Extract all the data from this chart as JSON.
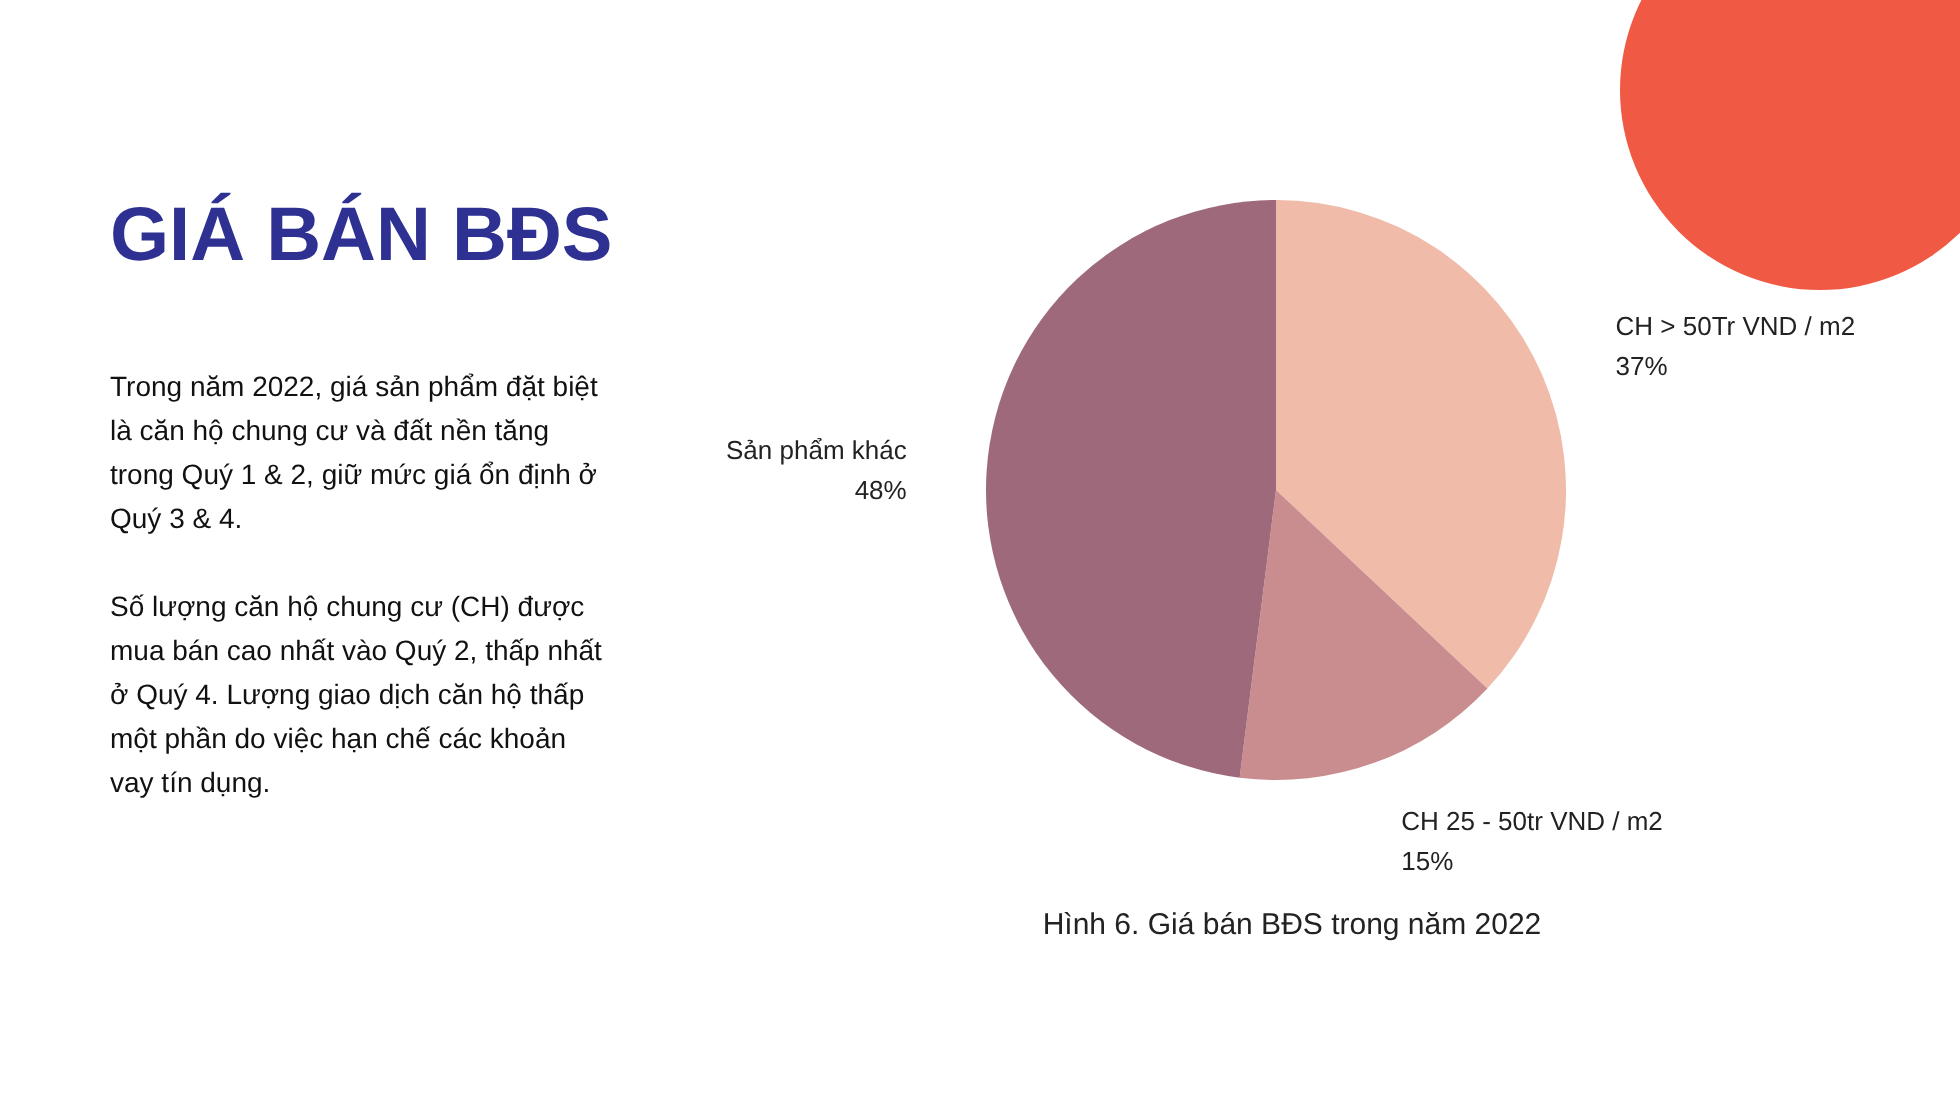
{
  "chart_data": {
    "type": "pie",
    "title": "GIÁ BÁN BĐS",
    "categories": [
      "CH > 50Tr VND / m2",
      "CH 25 - 50tr VND / m2",
      "Sản phẩm khác"
    ],
    "values": [
      37,
      15,
      48
    ],
    "value_labels": [
      "37%",
      "15%",
      "48%"
    ],
    "colors": [
      "#f0bba9",
      "#c98d90",
      "#9e6a7b"
    ],
    "annotations": [
      "Trong năm 2022, giá sản phẩm đặt biệt là căn hộ chung cư và đất nền tăng trong Quý 1 & 2, giữ mức giá ổn định ở Quý 3 & 4.",
      "Số lượng căn hộ chung cư (CH) được mua bán cao nhất vào Quý 2, thấp nhất ở Quý 4. Lượng giao dịch căn hộ thấp một phần do việc hạn chế các khoản vay tín dụng.",
      "Hình 6. Giá bán BĐS trong năm 2022"
    ]
  }
}
